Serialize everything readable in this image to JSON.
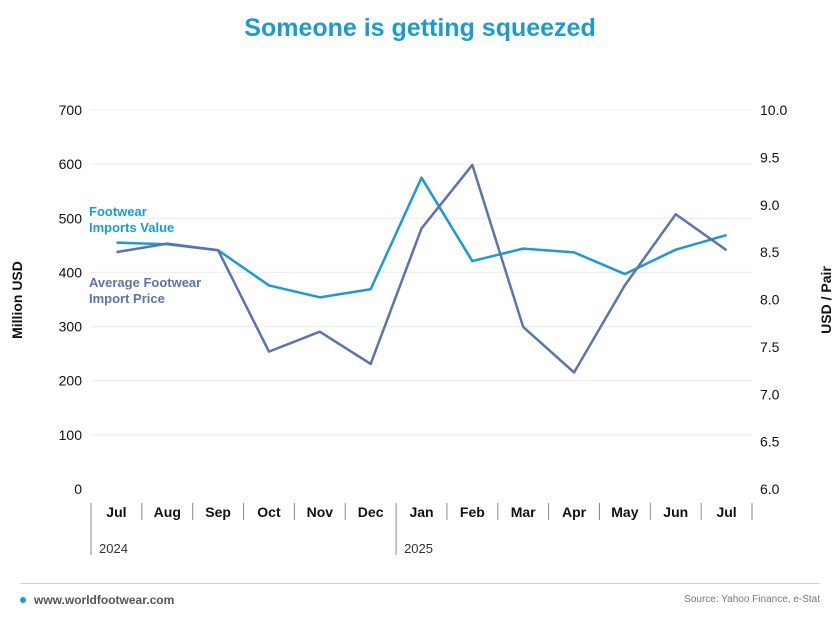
{
  "title": "Someone is getting squeezed",
  "footer": {
    "website": "www.worldfootwear.com",
    "source": "Source: Yahoo Finance, e-Stat"
  },
  "colors": {
    "title": "#1a9bd8",
    "imports_value": "#1a9bd8",
    "import_price": "#5b73b0",
    "grid": "#ebebeb",
    "text": "#111111"
  },
  "chart_data": {
    "type": "line",
    "categories": [
      "Jul",
      "Aug",
      "Sep",
      "Oct",
      "Nov",
      "Dec",
      "Jan",
      "Feb",
      "Mar",
      "Apr",
      "May",
      "Jun",
      "Jul"
    ],
    "year_groups": [
      {
        "label": "2024",
        "start": 0,
        "end": 5
      },
      {
        "label": "2025",
        "start": 6,
        "end": 12
      }
    ],
    "ylabel": "Million USD",
    "ylabel_right": "USD / Pair",
    "ylim": [
      0,
      700
    ],
    "yticks": [
      0,
      100,
      200,
      300,
      400,
      500,
      600,
      700
    ],
    "ylim_right": [
      6.0,
      10.0
    ],
    "yticks_right": [
      "6.0",
      "6.5",
      "7.0",
      "7.5",
      "8.0",
      "8.5",
      "9.0",
      "9.5",
      "10.0"
    ],
    "grid": true,
    "series": [
      {
        "name": "Footwear Imports Value",
        "axis": "left",
        "values": [
          455,
          452,
          441,
          376,
          354,
          369,
          575,
          421,
          444,
          437,
          397,
          442,
          469
        ]
      },
      {
        "name": "Average Footwear Import Price",
        "axis": "right",
        "values": [
          8.5,
          8.59,
          8.52,
          7.45,
          7.66,
          7.32,
          8.75,
          9.42,
          7.71,
          7.23,
          8.15,
          8.9,
          8.52
        ]
      }
    ]
  }
}
